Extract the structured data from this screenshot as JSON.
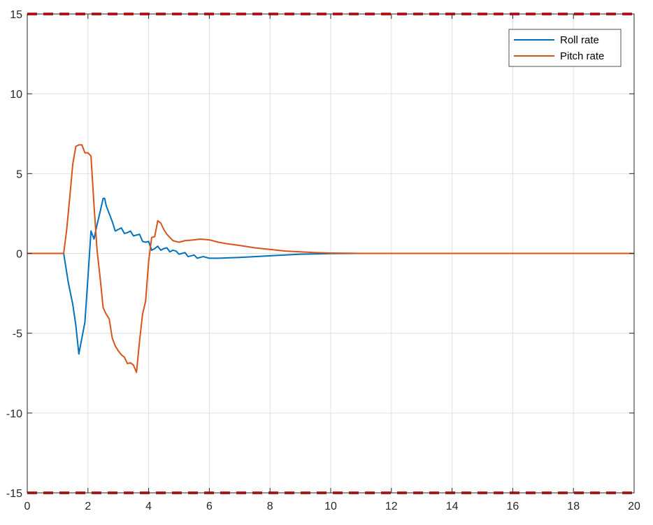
{
  "chart_data": {
    "type": "line",
    "title": "",
    "xlabel": "",
    "ylabel": "",
    "xlim": [
      0,
      20
    ],
    "ylim": [
      -15,
      15
    ],
    "xticks": [
      0,
      2,
      4,
      6,
      8,
      10,
      12,
      14,
      16,
      18,
      20
    ],
    "yticks": [
      -15,
      -10,
      -5,
      0,
      5,
      10,
      15
    ],
    "grid": true,
    "legend_position": "top-right",
    "limits": [
      {
        "value": 15,
        "color": "#e31a1c",
        "style": "dashed"
      },
      {
        "value": -15,
        "color": "#e31a1c",
        "style": "dashed"
      }
    ],
    "series": [
      {
        "name": "Roll rate",
        "color": "#0072bd",
        "points": [
          [
            0,
            0
          ],
          [
            1.2,
            0
          ],
          [
            1.35,
            -1.8
          ],
          [
            1.5,
            -3.2
          ],
          [
            1.6,
            -4.5
          ],
          [
            1.7,
            -6.3
          ],
          [
            1.8,
            -5.3
          ],
          [
            1.9,
            -4.3
          ],
          [
            2.0,
            -1.5
          ],
          [
            2.1,
            1.4
          ],
          [
            2.2,
            0.9
          ],
          [
            2.3,
            1.8
          ],
          [
            2.4,
            2.6
          ],
          [
            2.5,
            3.45
          ],
          [
            2.55,
            3.45
          ],
          [
            2.6,
            3.0
          ],
          [
            2.7,
            2.5
          ],
          [
            2.8,
            2.0
          ],
          [
            2.9,
            1.4
          ],
          [
            3.0,
            1.5
          ],
          [
            3.1,
            1.6
          ],
          [
            3.2,
            1.25
          ],
          [
            3.3,
            1.3
          ],
          [
            3.4,
            1.4
          ],
          [
            3.5,
            1.1
          ],
          [
            3.6,
            1.15
          ],
          [
            3.7,
            1.2
          ],
          [
            3.8,
            0.75
          ],
          [
            3.9,
            0.7
          ],
          [
            4.0,
            0.75
          ],
          [
            4.1,
            0.2
          ],
          [
            4.2,
            0.3
          ],
          [
            4.3,
            0.45
          ],
          [
            4.4,
            0.2
          ],
          [
            4.5,
            0.3
          ],
          [
            4.6,
            0.35
          ],
          [
            4.7,
            0.1
          ],
          [
            4.8,
            0.2
          ],
          [
            4.9,
            0.15
          ],
          [
            5.0,
            -0.05
          ],
          [
            5.1,
            0.0
          ],
          [
            5.2,
            0.05
          ],
          [
            5.3,
            -0.2
          ],
          [
            5.4,
            -0.15
          ],
          [
            5.5,
            -0.1
          ],
          [
            5.6,
            -0.3
          ],
          [
            5.7,
            -0.25
          ],
          [
            5.8,
            -0.2
          ],
          [
            6.0,
            -0.3
          ],
          [
            6.3,
            -0.3
          ],
          [
            6.6,
            -0.28
          ],
          [
            7.0,
            -0.25
          ],
          [
            7.5,
            -0.2
          ],
          [
            8.0,
            -0.15
          ],
          [
            8.5,
            -0.1
          ],
          [
            9.0,
            -0.05
          ],
          [
            9.5,
            -0.03
          ],
          [
            10.0,
            -0.01
          ],
          [
            11.0,
            0
          ],
          [
            20,
            0
          ]
        ]
      },
      {
        "name": "Pitch rate",
        "color": "#d95319",
        "points": [
          [
            0,
            0
          ],
          [
            1.2,
            0
          ],
          [
            1.3,
            1.5
          ],
          [
            1.4,
            3.5
          ],
          [
            1.5,
            5.6
          ],
          [
            1.6,
            6.7
          ],
          [
            1.7,
            6.8
          ],
          [
            1.8,
            6.8
          ],
          [
            1.9,
            6.3
          ],
          [
            2.0,
            6.3
          ],
          [
            2.1,
            6.1
          ],
          [
            2.2,
            3.0
          ],
          [
            2.3,
            0.2
          ],
          [
            2.4,
            -1.5
          ],
          [
            2.5,
            -3.4
          ],
          [
            2.6,
            -3.8
          ],
          [
            2.7,
            -4.1
          ],
          [
            2.8,
            -5.3
          ],
          [
            2.9,
            -5.8
          ],
          [
            3.0,
            -6.1
          ],
          [
            3.1,
            -6.35
          ],
          [
            3.2,
            -6.5
          ],
          [
            3.3,
            -6.9
          ],
          [
            3.4,
            -6.85
          ],
          [
            3.5,
            -7.0
          ],
          [
            3.6,
            -7.45
          ],
          [
            3.7,
            -5.5
          ],
          [
            3.8,
            -3.8
          ],
          [
            3.9,
            -3.0
          ],
          [
            4.0,
            -0.5
          ],
          [
            4.1,
            1.0
          ],
          [
            4.2,
            1.05
          ],
          [
            4.3,
            2.05
          ],
          [
            4.4,
            1.9
          ],
          [
            4.5,
            1.5
          ],
          [
            4.6,
            1.2
          ],
          [
            4.7,
            1.0
          ],
          [
            4.8,
            0.8
          ],
          [
            5.0,
            0.7
          ],
          [
            5.2,
            0.8
          ],
          [
            5.5,
            0.85
          ],
          [
            5.7,
            0.9
          ],
          [
            6.0,
            0.85
          ],
          [
            6.3,
            0.7
          ],
          [
            6.6,
            0.6
          ],
          [
            7.0,
            0.5
          ],
          [
            7.5,
            0.35
          ],
          [
            8.0,
            0.25
          ],
          [
            8.5,
            0.15
          ],
          [
            9.0,
            0.1
          ],
          [
            9.5,
            0.05
          ],
          [
            10.0,
            0.02
          ],
          [
            11.0,
            0
          ],
          [
            20,
            0
          ]
        ]
      }
    ]
  }
}
